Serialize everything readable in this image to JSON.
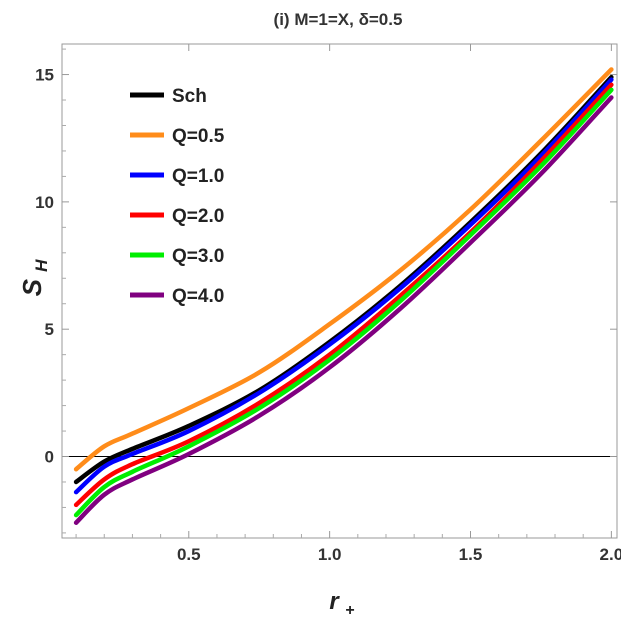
{
  "chart_data": {
    "type": "line",
    "title": "(i) M=1=X, δ=0.5",
    "xlabel_main": "r",
    "xlabel_sub": "+",
    "ylabel_main": "S",
    "ylabel_sub": "H",
    "xlim": [
      0.05,
      2.02
    ],
    "ylim": [
      -3.2,
      16.2
    ],
    "xticks": [
      0.5,
      1.0,
      1.5,
      2.0
    ],
    "xtick_labels": [
      "0.5",
      "1.0",
      "1.5",
      "2.0"
    ],
    "yticks": [
      0,
      5,
      10,
      15
    ],
    "ytick_labels": [
      "0",
      "5",
      "10",
      "15"
    ],
    "grid": false,
    "zero_line": true,
    "legend_position": "top-left",
    "series": [
      {
        "name": "Sch",
        "color": "#000000",
        "x": [
          0.1,
          0.2,
          0.3,
          0.5,
          0.75,
          1.0,
          1.25,
          1.5,
          1.75,
          2.0
        ],
        "y": [
          -1.0,
          -0.2,
          0.3,
          1.2,
          2.6,
          4.5,
          6.7,
          9.2,
          11.9,
          14.9
        ]
      },
      {
        "name": "Q=0.5",
        "color": "#ff8c1a",
        "x": [
          0.1,
          0.2,
          0.3,
          0.5,
          0.75,
          1.0,
          1.25,
          1.5,
          1.75,
          2.0
        ],
        "y": [
          -0.5,
          0.4,
          0.9,
          1.9,
          3.3,
          5.2,
          7.3,
          9.7,
          12.4,
          15.2
        ]
      },
      {
        "name": "Q=1.0",
        "color": "#0000ff",
        "x": [
          0.1,
          0.2,
          0.3,
          0.5,
          0.75,
          1.0,
          1.25,
          1.5,
          1.75,
          2.0
        ],
        "y": [
          -1.4,
          -0.4,
          0.1,
          1.0,
          2.5,
          4.4,
          6.6,
          9.1,
          11.8,
          14.8
        ]
      },
      {
        "name": "Q=2.0",
        "color": "#ff0000",
        "x": [
          0.1,
          0.2,
          0.3,
          0.5,
          0.75,
          1.0,
          1.25,
          1.5,
          1.75,
          2.0
        ],
        "y": [
          -1.9,
          -0.9,
          -0.3,
          0.6,
          2.1,
          4.0,
          6.3,
          8.8,
          11.6,
          14.6
        ]
      },
      {
        "name": "Q=3.0",
        "color": "#00ee00",
        "x": [
          0.1,
          0.2,
          0.3,
          0.5,
          0.75,
          1.0,
          1.25,
          1.5,
          1.75,
          2.0
        ],
        "y": [
          -2.3,
          -1.2,
          -0.6,
          0.4,
          1.9,
          3.8,
          6.1,
          8.7,
          11.4,
          14.4
        ]
      },
      {
        "name": "Q=4.0",
        "color": "#800080",
        "x": [
          0.1,
          0.2,
          0.3,
          0.5,
          0.75,
          1.0,
          1.25,
          1.5,
          1.75,
          2.0
        ],
        "y": [
          -2.6,
          -1.5,
          -0.9,
          0.1,
          1.6,
          3.5,
          5.8,
          8.4,
          11.1,
          14.1
        ]
      }
    ]
  }
}
